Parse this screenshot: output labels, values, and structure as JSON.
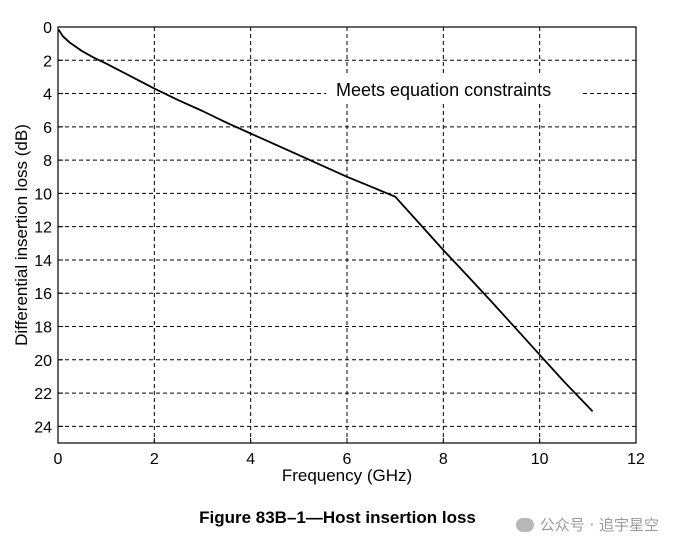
{
  "chart_data": {
    "type": "line",
    "title": "",
    "xlabel": "Frequency (GHz)",
    "ylabel": "Differential insertion loss (dB)",
    "xlim": [
      0,
      12
    ],
    "ylim": [
      0,
      25
    ],
    "y_inverted": true,
    "grid": true,
    "grid_style": "dashed",
    "x_ticks": [
      "0",
      "2",
      "4",
      "6",
      "8",
      "10",
      "12"
    ],
    "y_ticks": [
      "0",
      "2",
      "4",
      "6",
      "8",
      "10",
      "12",
      "14",
      "16",
      "18",
      "20",
      "22",
      "24"
    ],
    "annotation": "Meets equation constraints",
    "series": [
      {
        "color": "#000000",
        "x": [
          0.01,
          0.1,
          0.25,
          0.5,
          0.75,
          1.0,
          1.5,
          2.0,
          2.5,
          3.0,
          3.5,
          4.0,
          4.5,
          5.0,
          5.5,
          6.0,
          6.5,
          7.0,
          7.5,
          8.0,
          8.5,
          9.0,
          9.5,
          10.0,
          10.5,
          11.1
        ],
        "y": [
          0.15,
          0.55,
          0.95,
          1.45,
          1.85,
          2.2,
          2.95,
          3.7,
          4.4,
          5.05,
          5.75,
          6.4,
          7.05,
          7.7,
          8.35,
          9.0,
          9.6,
          10.2,
          11.8,
          13.4,
          14.95,
          16.5,
          18.1,
          19.7,
          21.3,
          23.1
        ]
      }
    ]
  },
  "caption": "Figure 83B–1—Host insertion loss",
  "watermark": "公众号 · 追宇星空"
}
